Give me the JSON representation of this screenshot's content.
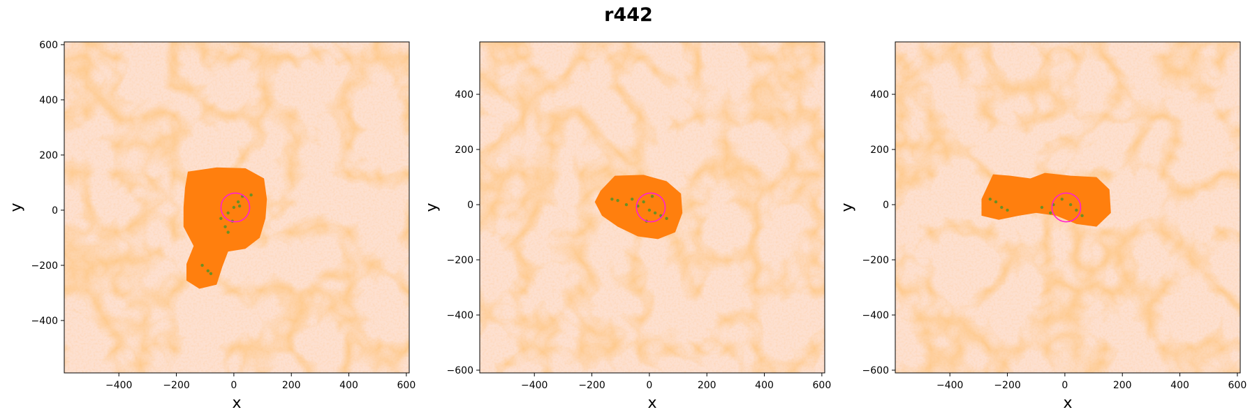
{
  "title": "r442",
  "chart_data": [
    {
      "type": "scatter",
      "xlabel": "x",
      "ylabel": "y",
      "xlim": [
        -590,
        610
      ],
      "ylim": [
        -590,
        610
      ],
      "xticks": [
        -400,
        -200,
        0,
        200,
        400,
        600
      ],
      "yticks": [
        -400,
        -200,
        0,
        200,
        400,
        600
      ],
      "circle": {
        "cx": 5,
        "cy": 10,
        "r": 50,
        "color": "#ff1fd2"
      },
      "blob": [
        [
          -160,
          140
        ],
        [
          -60,
          155
        ],
        [
          40,
          152
        ],
        [
          105,
          115
        ],
        [
          115,
          40
        ],
        [
          110,
          -30
        ],
        [
          90,
          -100
        ],
        [
          40,
          -140
        ],
        [
          -20,
          -150
        ],
        [
          -40,
          -205
        ],
        [
          -60,
          -270
        ],
        [
          -120,
          -285
        ],
        [
          -165,
          -255
        ],
        [
          -165,
          -195
        ],
        [
          -140,
          -130
        ],
        [
          -175,
          -60
        ],
        [
          -175,
          10
        ],
        [
          -170,
          80
        ]
      ],
      "green_points": [
        [
          30,
          50
        ],
        [
          60,
          55
        ],
        [
          15,
          30
        ],
        [
          0,
          10
        ],
        [
          -20,
          -10
        ],
        [
          -45,
          -30
        ],
        [
          -30,
          -60
        ],
        [
          -20,
          -80
        ],
        [
          -5,
          -40
        ],
        [
          20,
          15
        ],
        [
          -110,
          -200
        ],
        [
          -90,
          -220
        ],
        [
          -80,
          -230
        ]
      ]
    },
    {
      "type": "scatter",
      "xlabel": "x",
      "ylabel": "y",
      "xlim": [
        -590,
        610
      ],
      "ylim": [
        -610,
        590
      ],
      "xticks": [
        -400,
        -200,
        0,
        200,
        400,
        600
      ],
      "yticks": [
        -600,
        -400,
        -200,
        0,
        200,
        400
      ],
      "circle": {
        "cx": 5,
        "cy": -10,
        "r": 50,
        "color": "#ff1fd2"
      },
      "blob": [
        [
          -170,
          50
        ],
        [
          -120,
          105
        ],
        [
          -20,
          108
        ],
        [
          60,
          85
        ],
        [
          110,
          40
        ],
        [
          115,
          -30
        ],
        [
          90,
          -100
        ],
        [
          30,
          -125
        ],
        [
          -40,
          -115
        ],
        [
          -110,
          -80
        ],
        [
          -165,
          -40
        ],
        [
          -190,
          10
        ]
      ],
      "green_points": [
        [
          -130,
          20
        ],
        [
          -110,
          15
        ],
        [
          -80,
          0
        ],
        [
          -40,
          -5
        ],
        [
          -20,
          10
        ],
        [
          0,
          -20
        ],
        [
          20,
          -30
        ],
        [
          40,
          -40
        ],
        [
          60,
          -50
        ],
        [
          -10,
          -60
        ],
        [
          10,
          30
        ],
        [
          -60,
          20
        ]
      ]
    },
    {
      "type": "scatter",
      "xlabel": "x",
      "ylabel": "y",
      "xlim": [
        -590,
        610
      ],
      "ylim": [
        -610,
        590
      ],
      "xticks": [
        -400,
        -200,
        0,
        200,
        400,
        600
      ],
      "yticks": [
        -600,
        -400,
        -200,
        0,
        200,
        400
      ],
      "circle": {
        "cx": 5,
        "cy": -10,
        "r": 50,
        "color": "#ff1fd2"
      },
      "blob": [
        [
          -290,
          20
        ],
        [
          -250,
          110
        ],
        [
          -190,
          105
        ],
        [
          -120,
          95
        ],
        [
          -70,
          115
        ],
        [
          20,
          105
        ],
        [
          110,
          100
        ],
        [
          155,
          55
        ],
        [
          160,
          -30
        ],
        [
          110,
          -80
        ],
        [
          40,
          -70
        ],
        [
          -30,
          -40
        ],
        [
          -100,
          -30
        ],
        [
          -160,
          -40
        ],
        [
          -230,
          -55
        ],
        [
          -290,
          -40
        ]
      ],
      "green_points": [
        [
          -260,
          20
        ],
        [
          -240,
          10
        ],
        [
          -220,
          -10
        ],
        [
          -200,
          -20
        ],
        [
          -80,
          -10
        ],
        [
          -50,
          -30
        ],
        [
          -40,
          0
        ],
        [
          -10,
          20
        ],
        [
          20,
          0
        ],
        [
          40,
          -20
        ],
        [
          60,
          -40
        ]
      ]
    }
  ]
}
